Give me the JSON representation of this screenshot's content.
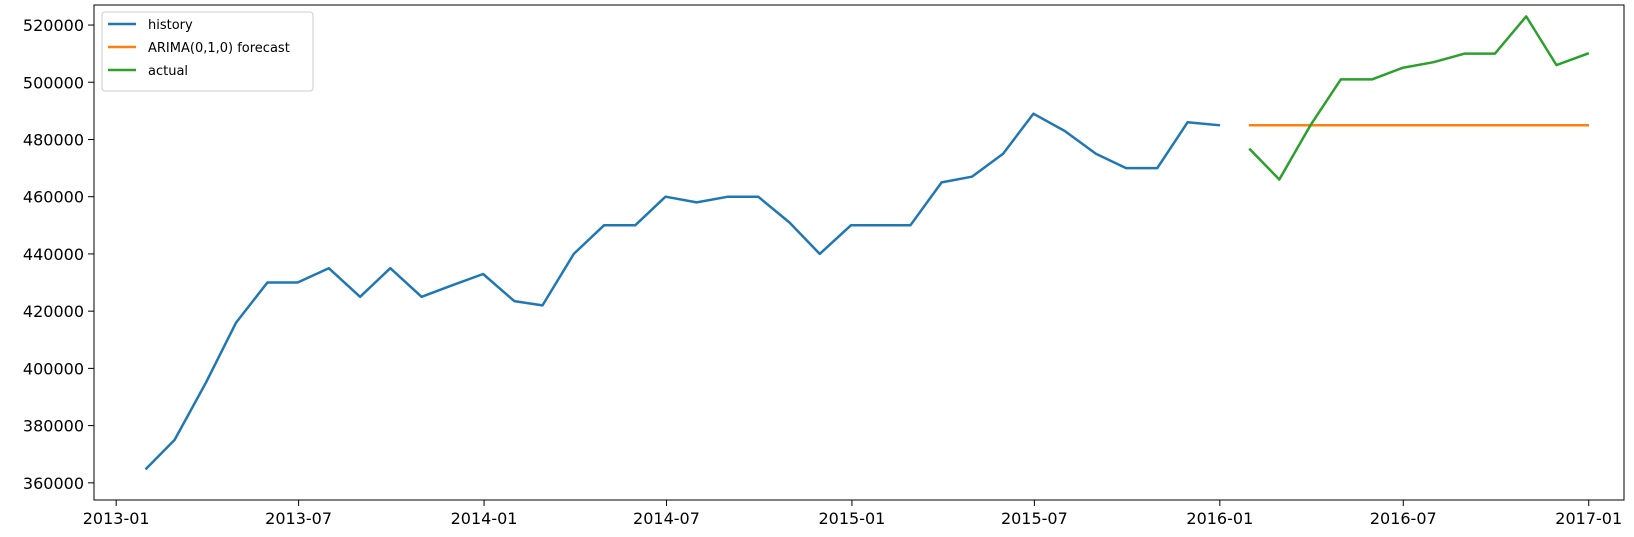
{
  "chart_data": {
    "type": "line",
    "title": "",
    "xlabel": "",
    "ylabel": "",
    "grid": false,
    "legend_placement": "top-left",
    "x_range": [
      "2012-12-10",
      "2017-02-05"
    ],
    "ylim": [
      354000,
      527000
    ],
    "yticks": [
      360000,
      380000,
      400000,
      420000,
      440000,
      460000,
      480000,
      500000,
      520000
    ],
    "xticks": [
      {
        "date": "2013-01-01",
        "label": "2013-01"
      },
      {
        "date": "2013-07-01",
        "label": "2013-07"
      },
      {
        "date": "2014-01-01",
        "label": "2014-01"
      },
      {
        "date": "2014-07-01",
        "label": "2014-07"
      },
      {
        "date": "2015-01-01",
        "label": "2015-01"
      },
      {
        "date": "2015-07-01",
        "label": "2015-07"
      },
      {
        "date": "2016-01-01",
        "label": "2016-01"
      },
      {
        "date": "2016-07-01",
        "label": "2016-07"
      },
      {
        "date": "2017-01-01",
        "label": "2017-01"
      }
    ],
    "series": [
      {
        "name": "history",
        "color": "#1f77b4",
        "x": [
          "2013-01-31",
          "2013-02-28",
          "2013-03-31",
          "2013-04-30",
          "2013-05-31",
          "2013-06-30",
          "2013-07-31",
          "2013-08-31",
          "2013-09-30",
          "2013-10-31",
          "2013-11-30",
          "2013-12-31",
          "2014-01-31",
          "2014-02-28",
          "2014-03-31",
          "2014-04-30",
          "2014-05-31",
          "2014-06-30",
          "2014-07-31",
          "2014-08-31",
          "2014-09-30",
          "2014-10-31",
          "2014-11-30",
          "2014-12-31",
          "2015-01-31",
          "2015-02-28",
          "2015-03-31",
          "2015-04-30",
          "2015-05-31",
          "2015-06-30",
          "2015-07-31",
          "2015-08-31",
          "2015-09-30",
          "2015-10-31",
          "2015-11-30",
          "2015-12-31"
        ],
        "y": [
          365000,
          375000,
          395000,
          416000,
          430000,
          430000,
          435000,
          425000,
          435000,
          425000,
          429000,
          433000,
          423500,
          422000,
          440000,
          450000,
          450000,
          460000,
          458000,
          460000,
          460000,
          451000,
          440000,
          450000,
          450000,
          450000,
          465000,
          467000,
          475000,
          489000,
          483000,
          475000,
          470000,
          470000,
          486000,
          485000
        ]
      },
      {
        "name": "ARIMA(0,1,0) forecast",
        "color": "#ff7f0e",
        "x": [
          "2016-01-31",
          "2016-02-29",
          "2016-03-31",
          "2016-04-30",
          "2016-05-31",
          "2016-06-30",
          "2016-07-31",
          "2016-08-31",
          "2016-09-30",
          "2016-10-31",
          "2016-11-30",
          "2016-12-31"
        ],
        "y": [
          485000,
          485000,
          485000,
          485000,
          485000,
          485000,
          485000,
          485000,
          485000,
          485000,
          485000,
          485000
        ]
      },
      {
        "name": "actual",
        "color": "#2ca02c",
        "x": [
          "2016-01-31",
          "2016-02-29",
          "2016-03-31",
          "2016-04-30",
          "2016-05-31",
          "2016-06-30",
          "2016-07-31",
          "2016-08-31",
          "2016-09-30",
          "2016-10-31",
          "2016-11-30",
          "2016-12-31"
        ],
        "y": [
          476500,
          466000,
          485000,
          501000,
          501000,
          505000,
          507000,
          510000,
          510000,
          523000,
          506000,
          510000
        ]
      }
    ]
  }
}
